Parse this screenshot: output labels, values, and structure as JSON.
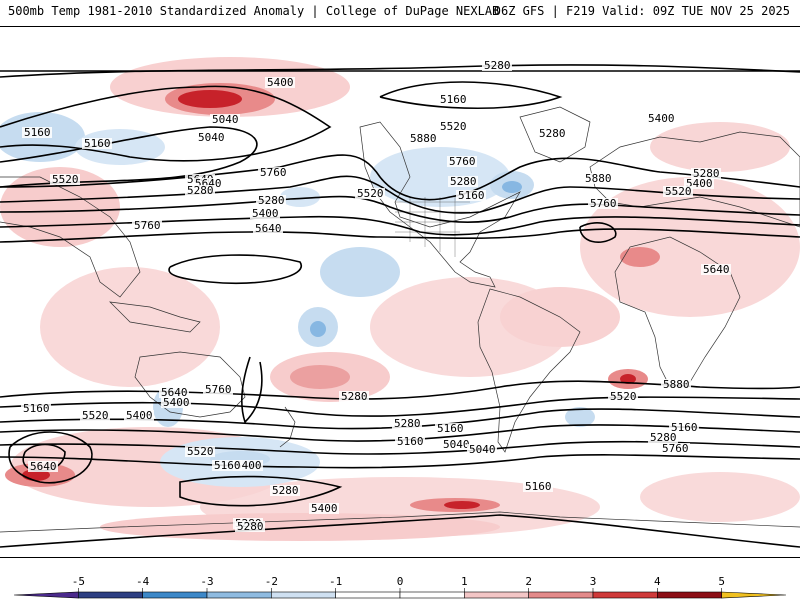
{
  "header": {
    "title_left": "500mb Temp 1981-2010 Standardized Anomaly | College of DuPage NEXLAB",
    "title_right": "06Z GFS | F219 Valid: 09Z TUE NOV 25 2025"
  },
  "map": {
    "contour_labels": [
      "5280",
      "5400",
      "5160",
      "5040",
      "5160",
      "5160",
      "5040",
      "5520",
      "5280",
      "5400",
      "5520",
      "5640",
      "5760",
      "5880",
      "5760",
      "5280",
      "5160",
      "5280",
      "5400",
      "5520",
      "5640",
      "5280",
      "5280",
      "5400",
      "5520",
      "5640",
      "5760",
      "5880",
      "5760",
      "5640",
      "5880",
      "5520",
      "5640",
      "5760",
      "5400",
      "5280",
      "5160",
      "5520",
      "5400",
      "5280",
      "5160",
      "5160",
      "5040",
      "5040",
      "5160",
      "5280",
      "5760",
      "5640",
      "5520",
      "5400",
      "5160",
      "5280",
      "5400",
      "5280",
      "5160",
      "5280"
    ],
    "colors": {
      "contour": "#000000",
      "warm_light": "#f7cccc",
      "warm_mid": "#e88a8a",
      "warm_strong": "#c7222a",
      "cool_light": "#c6dcf0",
      "cool_mid": "#87b7e2",
      "coast": "#333333"
    }
  },
  "colorbar": {
    "labels": [
      "-5",
      "-4",
      "-3",
      "-2",
      "-1",
      "0",
      "1",
      "2",
      "3",
      "4",
      "5"
    ],
    "colors": [
      "#4b2a8c",
      "#2e3f82",
      "#3d88c8",
      "#8fbbe0",
      "#cfe0f1",
      "#ffffff",
      "#ffffff",
      "#f3c6c6",
      "#e38a8a",
      "#cf3a3a",
      "#8c0f16",
      "#f0c020"
    ]
  }
}
